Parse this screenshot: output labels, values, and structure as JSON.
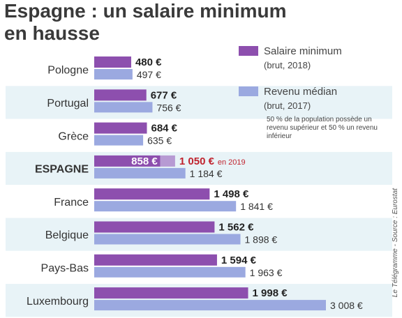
{
  "title": {
    "line1": "Espagne : un salaire minimum",
    "line2": "en hausse"
  },
  "source": "Le Télégramme - Source : Eurostat",
  "colors": {
    "minimum": "#8d4fae",
    "median": "#9ba9e0",
    "minimum_light": "#b79ad3",
    "highlight": "#c0232e",
    "row_odd": "#e8f3f7",
    "row_even": "#ffffff"
  },
  "legend": {
    "minimum": {
      "label": "Salaire minimum",
      "sub": "(brut, 2018)"
    },
    "median": {
      "label": "Revenu médian",
      "sub": "(brut, 2017)",
      "note_lines": [
        "50 % de la population possède un",
        "revenu supérieur et 50 % un revenu",
        "inférieur"
      ]
    }
  },
  "chart_data": {
    "type": "bar",
    "orientation": "horizontal",
    "categories": [
      "Pologne",
      "Portugal",
      "Grèce",
      "ESPAGNE",
      "France",
      "Belgique",
      "Pays-Bas",
      "Luxembourg"
    ],
    "series": [
      {
        "name": "Salaire minimum",
        "values": [
          480,
          677,
          684,
          858,
          1498,
          1562,
          1594,
          1998
        ],
        "labels": [
          "480 €",
          "677 €",
          "684 €",
          "858 €",
          "1 498 €",
          "1 562 €",
          "1 594 €",
          "1 998 €"
        ]
      },
      {
        "name": "Revenu médian",
        "values": [
          497,
          756,
          635,
          1184,
          1841,
          1898,
          1963,
          3008
        ],
        "labels": [
          "497 €",
          "756 €",
          "635 €",
          "1 184 €",
          "1 841 €",
          "1 898 €",
          "1 963 €",
          "3 008 €"
        ]
      }
    ],
    "annotation": {
      "category": "ESPAGNE",
      "value": 1050,
      "label": "1 050 €",
      "suffix": "en 2019"
    },
    "highlight_category": "ESPAGNE",
    "xlim": [
      0,
      3008
    ],
    "grid": false
  }
}
